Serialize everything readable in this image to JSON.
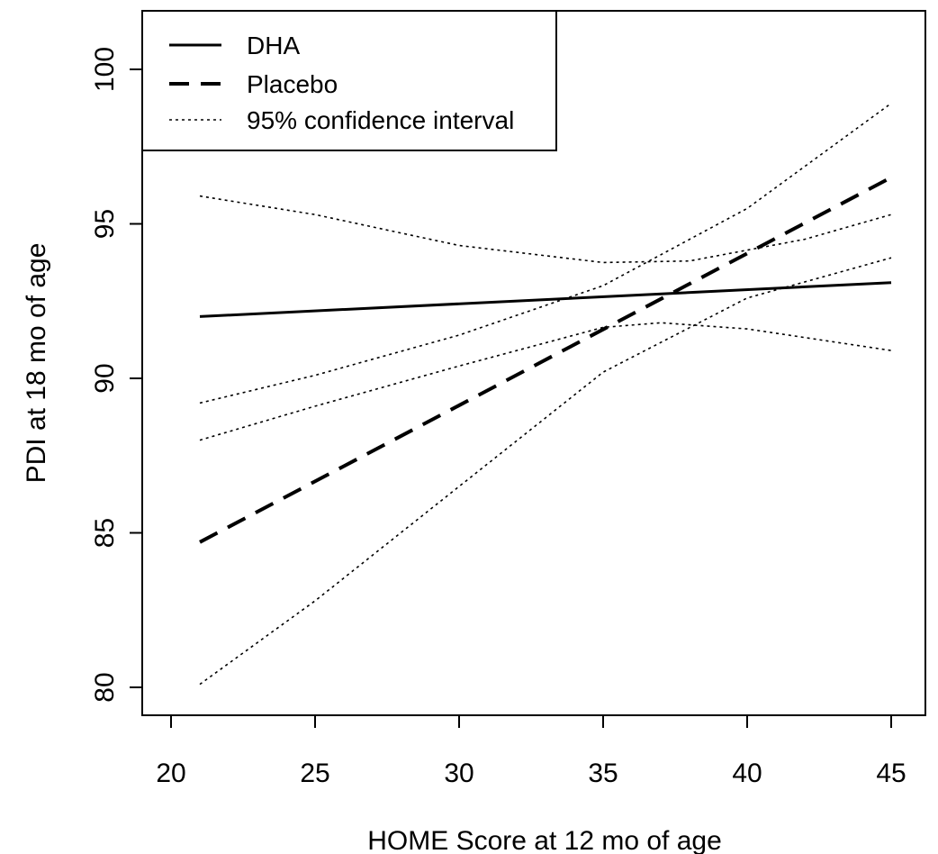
{
  "chart_data": {
    "type": "line",
    "title": "",
    "xlabel": "HOME Score at 12 mo of age",
    "ylabel": "PDI at 18 mo of age",
    "xlim": [
      19,
      46
    ],
    "ylim": [
      79.2,
      102.2
    ],
    "xticks": [
      20,
      25,
      30,
      35,
      40,
      45
    ],
    "yticks": [
      80,
      85,
      90,
      95,
      100
    ],
    "grid": false,
    "legend_position": "top-left",
    "legend": [
      {
        "label": "DHA",
        "style": "solid"
      },
      {
        "label": "Placebo",
        "style": "dashed"
      },
      {
        "label": "95% confidence interval",
        "style": "dotted"
      }
    ],
    "series": [
      {
        "name": "DHA",
        "style": "solid",
        "color": "#000000",
        "points": [
          [
            21,
            92.0
          ],
          [
            45,
            93.1
          ]
        ]
      },
      {
        "name": "Placebo",
        "style": "dashed",
        "color": "#000000",
        "points": [
          [
            21,
            84.7
          ],
          [
            45,
            96.5
          ]
        ]
      },
      {
        "group": "DHA 95% CI upper",
        "style": "dotted",
        "color": "#000000",
        "points": [
          [
            21,
            95.9
          ],
          [
            25,
            95.3
          ],
          [
            30,
            94.3
          ],
          [
            35,
            93.75
          ],
          [
            38,
            93.8
          ],
          [
            42,
            94.5
          ],
          [
            45,
            95.3
          ]
        ]
      },
      {
        "group": "DHA 95% CI lower",
        "style": "dotted",
        "color": "#000000",
        "points": [
          [
            21,
            88.0
          ],
          [
            25,
            89.1
          ],
          [
            30,
            90.4
          ],
          [
            35,
            91.65
          ],
          [
            37,
            91.8
          ],
          [
            40,
            91.6
          ],
          [
            45,
            90.9
          ]
        ]
      },
      {
        "group": "Placebo 95% CI upper",
        "style": "dotted",
        "color": "#000000",
        "points": [
          [
            21,
            89.2
          ],
          [
            25,
            90.1
          ],
          [
            30,
            91.4
          ],
          [
            35,
            93.0
          ],
          [
            40,
            95.5
          ],
          [
            45,
            98.9
          ]
        ]
      },
      {
        "group": "Placebo 95% CI lower",
        "style": "dotted",
        "color": "#000000",
        "points": [
          [
            21,
            80.1
          ],
          [
            25,
            82.8
          ],
          [
            30,
            86.5
          ],
          [
            35,
            90.2
          ],
          [
            40,
            92.6
          ],
          [
            45,
            93.9
          ]
        ]
      }
    ]
  }
}
